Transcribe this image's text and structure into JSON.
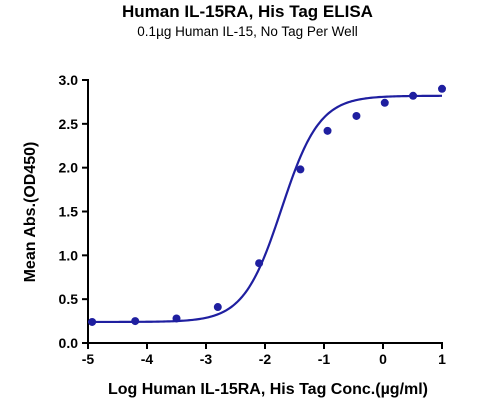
{
  "chart_data": {
    "type": "scatter",
    "title": "Human IL-15RA, His Tag ELISA",
    "subtitle": "0.1µg Human IL-15, No Tag Per Well",
    "xlabel": "Log Human IL-15RA, His Tag Conc.(µg/ml)",
    "ylabel": "Mean Abs.(OD450)",
    "xlim": [
      -5,
      1
    ],
    "ylim": [
      0,
      3.0
    ],
    "xticks": [
      "-5",
      "-4",
      "-3",
      "-2",
      "-1",
      "0",
      "1"
    ],
    "yticks": [
      "0.0",
      "0.5",
      "1.0",
      "1.5",
      "2.0",
      "2.5",
      "3.0"
    ],
    "grid": false,
    "legend": "none",
    "colors": {
      "series": "#1f1fa0",
      "axis": "#000000"
    },
    "series": [
      {
        "points": [
          {
            "x": -4.93,
            "y": 0.24
          },
          {
            "x": -4.2,
            "y": 0.25
          },
          {
            "x": -3.5,
            "y": 0.28
          },
          {
            "x": -2.8,
            "y": 0.41
          },
          {
            "x": -2.1,
            "y": 0.91
          },
          {
            "x": -1.4,
            "y": 1.98
          },
          {
            "x": -0.94,
            "y": 2.42
          },
          {
            "x": -0.45,
            "y": 2.59
          },
          {
            "x": 0.03,
            "y": 2.74
          },
          {
            "x": 0.51,
            "y": 2.82
          },
          {
            "x": 1.0,
            "y": 2.9
          }
        ],
        "fit": {
          "model": "4PL",
          "bottom": 0.24,
          "top": 2.82,
          "logEC50": -1.72,
          "hill": 1.35
        }
      }
    ]
  }
}
